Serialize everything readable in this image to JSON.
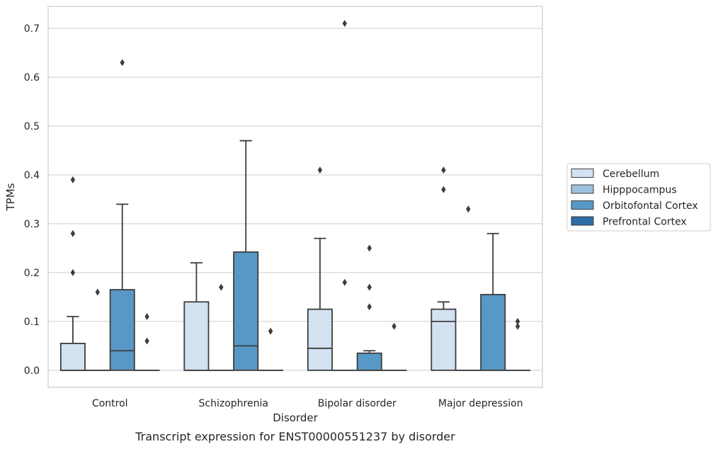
{
  "chart_data": {
    "type": "box",
    "caption": "Transcript expression for ENST00000551237 by disorder",
    "xlabel": "Disorder",
    "ylabel": "TPMs",
    "ylim": [
      -0.035,
      0.745
    ],
    "yticks": [
      0.0,
      0.1,
      0.2,
      0.3,
      0.4,
      0.5,
      0.6,
      0.7
    ],
    "ytick_labels": [
      "0.0",
      "0.1",
      "0.2",
      "0.3",
      "0.4",
      "0.5",
      "0.6",
      "0.7"
    ],
    "grid": "horizontal",
    "legend_position": "right",
    "categories": [
      "Control",
      "Schizophrenia",
      "Bipolar disorder",
      "Major depression"
    ],
    "series": [
      {
        "name": "Cerebellum",
        "color": "#d3e2f1",
        "boxes": [
          {
            "whisker_low": 0.0,
            "q1": 0.0,
            "median": 0.0,
            "q3": 0.055,
            "whisker_high": 0.11,
            "outliers": [
              0.2,
              0.28,
              0.39
            ]
          },
          {
            "whisker_low": 0.0,
            "q1": 0.0,
            "median": 0.0,
            "q3": 0.14,
            "whisker_high": 0.22,
            "outliers": []
          },
          {
            "whisker_low": 0.0,
            "q1": 0.0,
            "median": 0.045,
            "q3": 0.125,
            "whisker_high": 0.27,
            "outliers": [
              0.41
            ]
          },
          {
            "whisker_low": 0.0,
            "q1": 0.0,
            "median": 0.1,
            "q3": 0.125,
            "whisker_high": 0.14,
            "outliers": [
              0.37,
              0.41
            ]
          }
        ]
      },
      {
        "name": "Hipppocampus",
        "color": "#9dc1dd",
        "boxes": [
          {
            "whisker_low": 0.0,
            "q1": 0.0,
            "median": 0.0,
            "q3": 0.0,
            "whisker_high": 0.0,
            "outliers": [
              0.16
            ]
          },
          {
            "whisker_low": 0.0,
            "q1": 0.0,
            "median": 0.0,
            "q3": 0.0,
            "whisker_high": 0.0,
            "outliers": [
              0.17
            ]
          },
          {
            "whisker_low": 0.0,
            "q1": 0.0,
            "median": 0.0,
            "q3": 0.0,
            "whisker_high": 0.0,
            "outliers": [
              0.18,
              0.71
            ]
          },
          {
            "whisker_low": 0.0,
            "q1": 0.0,
            "median": 0.0,
            "q3": 0.0,
            "whisker_high": 0.0,
            "outliers": [
              0.33
            ]
          }
        ]
      },
      {
        "name": "Orbitofontal Cortex",
        "color": "#5898c6",
        "boxes": [
          {
            "whisker_low": 0.0,
            "q1": 0.0,
            "median": 0.04,
            "q3": 0.165,
            "whisker_high": 0.34,
            "outliers": [
              0.63
            ]
          },
          {
            "whisker_low": 0.0,
            "q1": 0.0,
            "median": 0.05,
            "q3": 0.242,
            "whisker_high": 0.47,
            "outliers": []
          },
          {
            "whisker_low": 0.0,
            "q1": 0.0,
            "median": 0.0,
            "q3": 0.035,
            "whisker_high": 0.04,
            "outliers": [
              0.13,
              0.17,
              0.25
            ]
          },
          {
            "whisker_low": 0.0,
            "q1": 0.0,
            "median": 0.0,
            "q3": 0.155,
            "whisker_high": 0.28,
            "outliers": []
          }
        ]
      },
      {
        "name": "Prefrontal Cortex",
        "color": "#2e6ca4",
        "boxes": [
          {
            "whisker_low": 0.0,
            "q1": 0.0,
            "median": 0.0,
            "q3": 0.0,
            "whisker_high": 0.0,
            "outliers": [
              0.06,
              0.11
            ]
          },
          {
            "whisker_low": 0.0,
            "q1": 0.0,
            "median": 0.0,
            "q3": 0.0,
            "whisker_high": 0.0,
            "outliers": [
              0.08
            ]
          },
          {
            "whisker_low": 0.0,
            "q1": 0.0,
            "median": 0.0,
            "q3": 0.0,
            "whisker_high": 0.0,
            "outliers": [
              0.09
            ]
          },
          {
            "whisker_low": 0.0,
            "q1": 0.0,
            "median": 0.0,
            "q3": 0.0,
            "whisker_high": 0.0,
            "outliers": [
              0.09,
              0.1
            ]
          }
        ]
      }
    ]
  }
}
